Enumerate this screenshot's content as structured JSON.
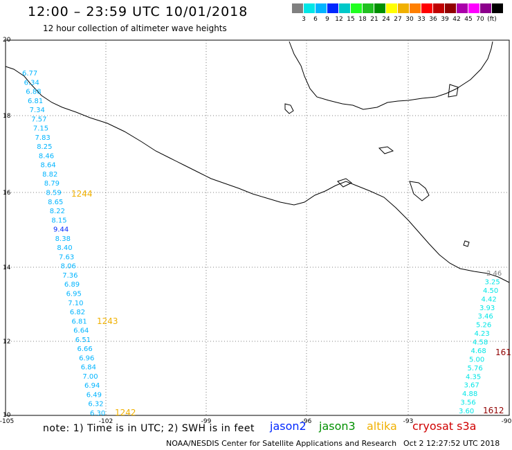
{
  "title": "12:00 – 23:59 UTC 10/01/2018",
  "subtitle": "12 hour collection of altimeter wave heights",
  "legend": {
    "unit": "(ft)",
    "colors": [
      "#808080",
      "#00e6e6",
      "#00b4ff",
      "#0028ff",
      "#00c8c8",
      "#20ff20",
      "#20c020",
      "#009000",
      "#ffff00",
      "#f0b000",
      "#ff7f00",
      "#ff0000",
      "#c00000",
      "#900000",
      "#aa00aa",
      "#ff00ff",
      "#8c008c",
      "#000000"
    ],
    "labels": [
      "3",
      "6",
      "9",
      "12",
      "15",
      "18",
      "21",
      "24",
      "27",
      "30",
      "33",
      "36",
      "39",
      "42",
      "45",
      "70"
    ]
  },
  "axes": {
    "lon_ticks": [
      "-105",
      "-102",
      "-99",
      "-96",
      "-93",
      "-90"
    ],
    "lat_ticks": [
      "20",
      "18",
      "16",
      "14",
      "12",
      "10"
    ]
  },
  "tracks": [
    {
      "points": [
        "6.77",
        "6.34",
        "6.88",
        "6.81",
        "7.34",
        "7.57",
        "7.15",
        "7.83",
        "8.25",
        "8.46",
        "8.64",
        "8.82",
        "8.79",
        "8.59",
        "8.65",
        "8.22",
        "8.15",
        "9.44",
        "8.38",
        "8.40",
        "7.63",
        "8.06",
        "7.36",
        "6.89",
        "6.95",
        "7.10",
        "6.82",
        "6.81",
        "6.64",
        "6.51",
        "6.66",
        "6.96",
        "6.84",
        "7.00",
        "6.94",
        "6.49",
        "6.32",
        "6.30"
      ],
      "colors": [
        "#00b4ff",
        "#00b4ff",
        "#00b4ff",
        "#00b4ff",
        "#00b4ff",
        "#00b4ff",
        "#00b4ff",
        "#00b4ff",
        "#00b4ff",
        "#00b4ff",
        "#00b4ff",
        "#00b4ff",
        "#00b4ff",
        "#00b4ff",
        "#00b4ff",
        "#00b4ff",
        "#00b4ff",
        "#0028ff",
        "#00b4ff",
        "#00b4ff",
        "#00b4ff",
        "#00b4ff",
        "#00b4ff",
        "#00b4ff",
        "#00b4ff",
        "#00b4ff",
        "#00b4ff",
        "#00b4ff",
        "#00b4ff",
        "#00b4ff",
        "#00b4ff",
        "#00b4ff",
        "#00b4ff",
        "#00b4ff",
        "#00b4ff",
        "#00b4ff",
        "#00b4ff",
        "#00b4ff"
      ]
    },
    {
      "points": [
        "2.46",
        "3.25",
        "4.50",
        "4.42",
        "3.93",
        "3.46",
        "5.26",
        "4.23",
        "4.58",
        "4.68",
        "5.00",
        "5.76",
        "4.35",
        "3.67",
        "4.88",
        "3.56",
        "3.60"
      ],
      "colors": [
        "#808080",
        "#00e6e6",
        "#00e6e6",
        "#00e6e6",
        "#00e6e6",
        "#00e6e6",
        "#00e6e6",
        "#00e6e6",
        "#00e6e6",
        "#00e6e6",
        "#00e6e6",
        "#00e6e6",
        "#00e6e6",
        "#00e6e6",
        "#00e6e6",
        "#00e6e6",
        "#00e6e6"
      ]
    }
  ],
  "time_labels": [
    {
      "text": "1244",
      "color": "#f0b000"
    },
    {
      "text": "1243",
      "color": "#f0b000"
    },
    {
      "text": "1242",
      "color": "#f0b000"
    },
    {
      "text": "161",
      "color": "#900000"
    },
    {
      "text": "1612",
      "color": "#900000"
    }
  ],
  "note": "note: 1) Time is in UTC; 2) SWH is in feet",
  "satellites": [
    {
      "name": "jason2",
      "color": "#0028ff"
    },
    {
      "name": "jason3",
      "color": "#009000"
    },
    {
      "name": "altika",
      "color": "#f0b000"
    },
    {
      "name": "cryosat s3a",
      "color": "#d00000"
    }
  ],
  "credit": "NOAA/NESDIS Center for Satellite Applications and Research",
  "credit_time": "Oct  2 12:27:52 UTC 2018"
}
